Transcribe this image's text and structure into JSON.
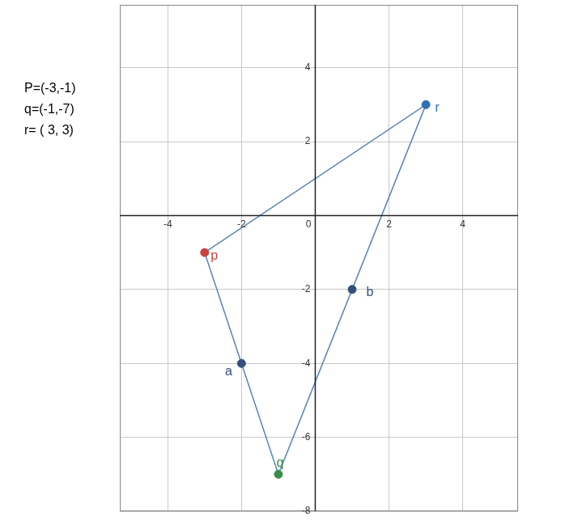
{
  "chart_data": {
    "type": "scatter",
    "annotations": [
      "P=(-3,-1)",
      "q=(-1,-7)",
      "r= ( 3, 3)"
    ],
    "series": [
      {
        "type": "line",
        "color": "#5a85b8",
        "marker": "none",
        "x": [
          -3,
          -1,
          3,
          -3
        ],
        "y": [
          -1,
          -7,
          3,
          -1
        ]
      },
      {
        "type": "scatter",
        "marker": "circle",
        "x": [
          -3,
          -1,
          3,
          -2,
          1
        ],
        "y": [
          -1,
          -7,
          3,
          -4,
          -2
        ],
        "labels": [
          "p",
          "q",
          "r",
          "a",
          "b"
        ],
        "colors": [
          "#c74440",
          "#388c46",
          "#2d70b3",
          "#34507a",
          "#34507a"
        ]
      }
    ],
    "xlim": [
      -5.3,
      5.5
    ],
    "ylim": [
      -8,
      5.7
    ],
    "xticks": [
      -4,
      -2,
      0,
      2,
      4
    ],
    "yticks": [
      -8,
      -6,
      -4,
      -2,
      2,
      4
    ],
    "grid": true
  }
}
